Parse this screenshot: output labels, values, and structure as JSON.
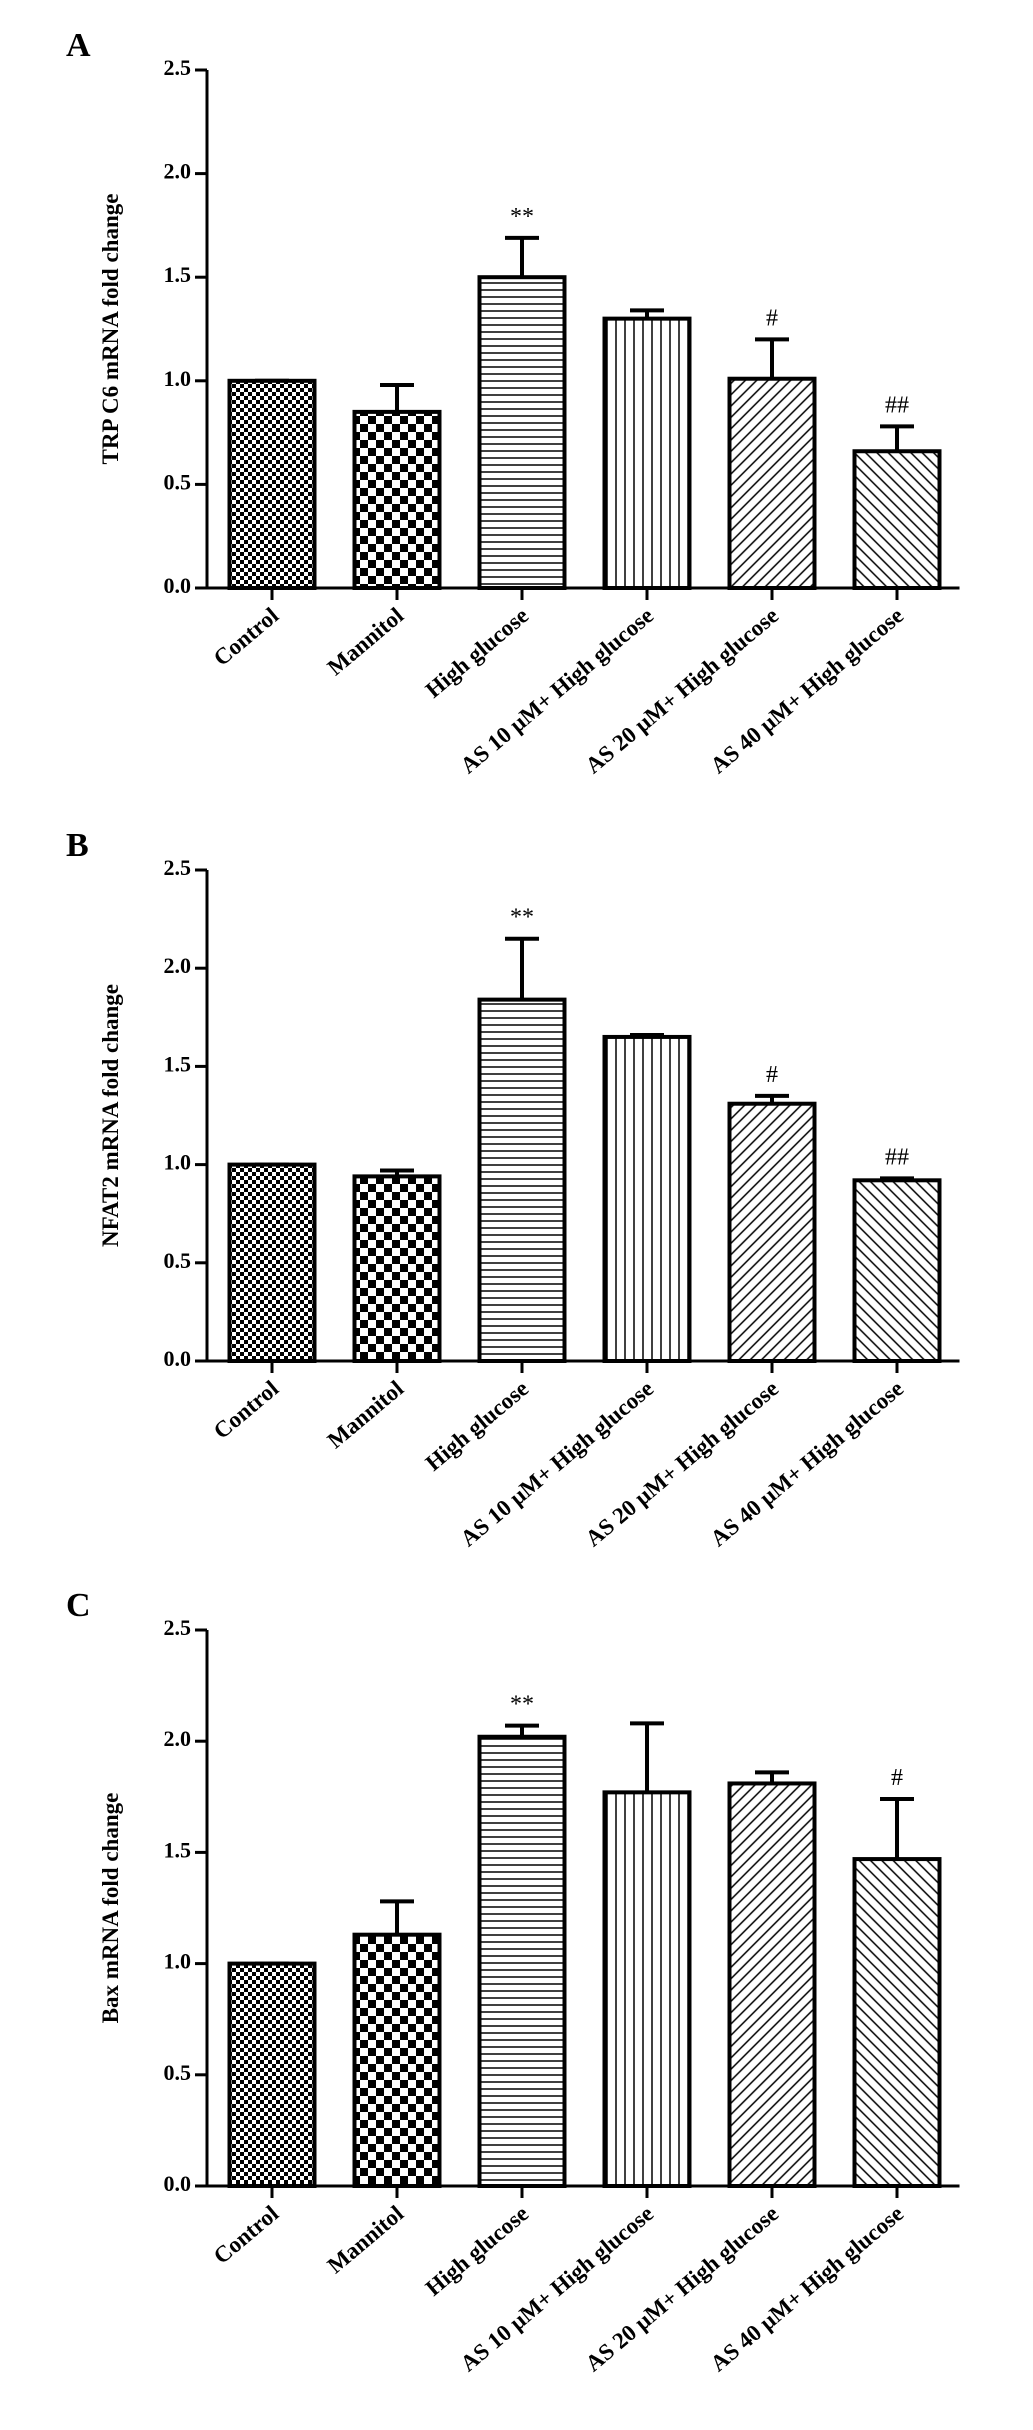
{
  "chart_data": [
    {
      "type": "bar",
      "panel": "A",
      "y_label": "TRP C6 mRNA fold change",
      "categories": [
        "Control",
        "Mannitol",
        "High glucose",
        "AS 10 μM+ High glucose",
        "AS 20 μM+ High glucose",
        "AS 40 μM+ High glucose"
      ],
      "values": [
        1.0,
        0.85,
        1.5,
        1.3,
        1.01,
        0.66
      ],
      "errors": [
        0.0,
        0.13,
        0.19,
        0.04,
        0.19,
        0.12
      ],
      "annotations": [
        null,
        null,
        "**",
        null,
        "#",
        "##"
      ],
      "ylim": [
        0,
        2.5
      ],
      "yticks": [
        {
          "value": 0,
          "label": "0.0"
        },
        0.5,
        {
          "value": 1,
          "label": "1.0"
        },
        1.5,
        {
          "value": 2,
          "label": "2.0"
        },
        2.5
      ]
    },
    {
      "type": "bar",
      "panel": "B",
      "y_label": "NFAT2 mRNA fold change",
      "categories": [
        "Control",
        "Mannitol",
        "High glucose",
        "AS 10 μM+ High glucose",
        "AS 20 μM+ High glucose",
        "AS 40 μM+ High glucose"
      ],
      "values": [
        1.0,
        0.94,
        1.84,
        1.65,
        1.31,
        0.92
      ],
      "errors": [
        0.0,
        0.03,
        0.31,
        0.01,
        0.04,
        0.01
      ],
      "annotations": [
        null,
        null,
        "**",
        null,
        "#",
        "##"
      ],
      "ylim": [
        0,
        2.5
      ],
      "yticks": [
        {
          "value": 0,
          "label": "0.0"
        },
        0.5,
        {
          "value": 1,
          "label": "1.0"
        },
        1.5,
        {
          "value": 2,
          "label": "2.0"
        },
        2.5
      ]
    },
    {
      "type": "bar",
      "panel": "C",
      "y_label": "Bax mRNA fold change",
      "categories": [
        "Control",
        "Mannitol",
        "High glucose",
        "AS 10 μM+ High glucose",
        "AS 20 μM+ High glucose",
        "AS 40 μM+ High glucose"
      ],
      "values": [
        1.0,
        1.13,
        2.02,
        1.77,
        1.81,
        1.47
      ],
      "errors": [
        0.0,
        0.15,
        0.05,
        0.31,
        0.05,
        0.27
      ],
      "annotations": [
        null,
        null,
        "**",
        null,
        null,
        "#"
      ],
      "ylim": [
        0,
        2.5
      ],
      "yticks": [
        {
          "value": 0,
          "label": "0.0"
        },
        0.5,
        {
          "value": 1,
          "label": "1.0"
        },
        1.5,
        {
          "value": 2,
          "label": "2.0"
        },
        2.5
      ]
    }
  ]
}
